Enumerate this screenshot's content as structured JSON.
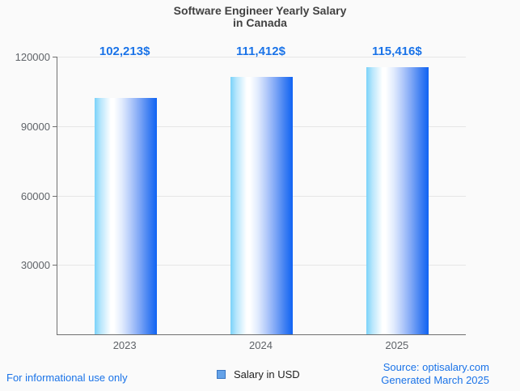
{
  "header": {
    "title": "Software Engineer Yearly Salary\nin Canada"
  },
  "chart_data": {
    "type": "bar",
    "title": "Software Engineer Yearly Salary in Canada",
    "categories": [
      "2023",
      "2024",
      "2025"
    ],
    "series": [
      {
        "name": "Salary in USD",
        "values": [
          102213,
          111412,
          115416
        ]
      }
    ],
    "value_labels": [
      "102,213$",
      "111,412$",
      "115,416$"
    ],
    "xlabel": "",
    "ylabel": "",
    "ylim": [
      0,
      120000
    ],
    "yticks": [
      30000,
      60000,
      90000,
      120000
    ],
    "grid": true,
    "legend_position": "bottom"
  },
  "legend": {
    "label": "Salary in USD"
  },
  "footer": {
    "left": "For informational use only",
    "right": "Source: optisalary.com\nGenerated March 2025"
  },
  "colors": {
    "background": "#fafafa",
    "accent_blue": "#1a73e8",
    "title_color": "#424242",
    "tick_label_color": "#5f6368",
    "axis_color": "#707070",
    "gridline_color": "#e6e6e6",
    "bar_gradient_left": "#7ad2f9",
    "bar_gradient_mid": "#ffffff",
    "bar_gradient_right": "#0f63f3",
    "legend_marker_fill": "#64a2e8",
    "legend_marker_border": "#3a76c2"
  }
}
